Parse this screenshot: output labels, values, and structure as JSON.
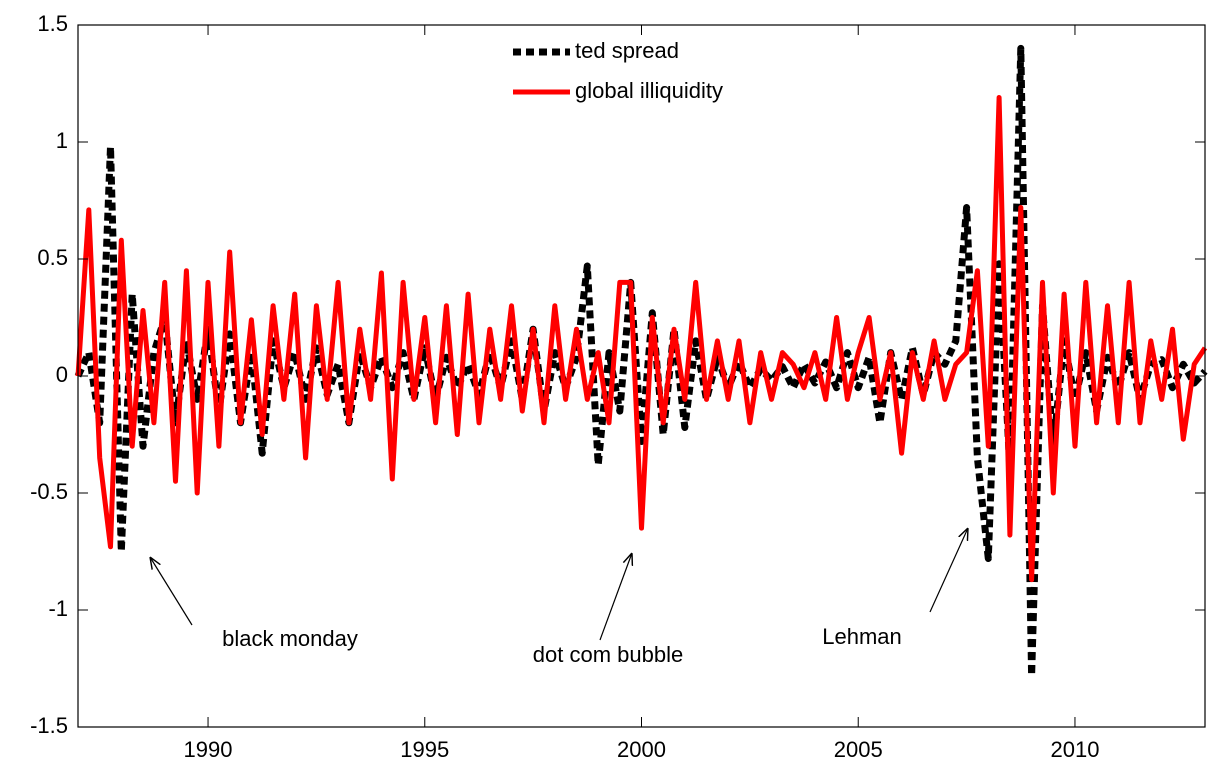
{
  "chart_data": {
    "type": "line",
    "x": [
      1987,
      1987.25,
      1987.5,
      1987.75,
      1988,
      1988.25,
      1988.5,
      1988.75,
      1989,
      1989.25,
      1989.5,
      1989.75,
      1990,
      1990.25,
      1990.5,
      1990.75,
      1991,
      1991.25,
      1991.5,
      1991.75,
      1992,
      1992.25,
      1992.5,
      1992.75,
      1993,
      1993.25,
      1993.5,
      1993.75,
      1994,
      1994.25,
      1994.5,
      1994.75,
      1995,
      1995.25,
      1995.5,
      1995.75,
      1996,
      1996.25,
      1996.5,
      1996.75,
      1997,
      1997.25,
      1997.5,
      1997.75,
      1998,
      1998.25,
      1998.5,
      1998.75,
      1999,
      1999.25,
      1999.5,
      1999.75,
      2000,
      2000.25,
      2000.5,
      2000.75,
      2001,
      2001.25,
      2001.5,
      2001.75,
      2002,
      2002.25,
      2002.5,
      2002.75,
      2003,
      2003.25,
      2003.5,
      2003.75,
      2004,
      2004.25,
      2004.5,
      2004.75,
      2005,
      2005.25,
      2005.5,
      2005.75,
      2006,
      2006.25,
      2006.5,
      2006.75,
      2007,
      2007.25,
      2007.5,
      2007.75,
      2008,
      2008.25,
      2008.5,
      2008.75,
      2009,
      2009.25,
      2009.5,
      2009.75,
      2010,
      2010.25,
      2010.5,
      2010.75,
      2011,
      2011.25,
      2011.5,
      2011.75,
      2012,
      2012.25,
      2012.5,
      2012.75,
      2013
    ],
    "series": [
      {
        "name": "ted spread",
        "color": "#000000",
        "dashed": true,
        "values": [
          0,
          0.1,
          -0.2,
          0.98,
          -0.75,
          0.35,
          -0.3,
          0.1,
          0.25,
          -0.2,
          0.15,
          -0.1,
          0.2,
          -0.15,
          0.18,
          -0.2,
          0.1,
          -0.33,
          0.15,
          -0.05,
          0.1,
          -0.1,
          0.12,
          -0.08,
          0.05,
          -0.2,
          0.1,
          -0.05,
          0.08,
          -0.05,
          0.1,
          -0.1,
          0.12,
          -0.1,
          0.08,
          -0.05,
          0.05,
          -0.08,
          0.1,
          -0.05,
          0.15,
          -0.1,
          0.2,
          -0.15,
          0.1,
          -0.05,
          0.08,
          0.47,
          -0.38,
          0.1,
          -0.15,
          0.4,
          -0.28,
          0.27,
          -0.25,
          0.2,
          -0.22,
          0.15,
          -0.1,
          0.08,
          -0.05,
          0.06,
          -0.05,
          0.03,
          -0.02,
          0.04,
          -0.05,
          0.05,
          -0.03,
          0.06,
          -0.05,
          0.1,
          -0.05,
          0.08,
          -0.2,
          0.1,
          -0.1,
          0.12,
          -0.08,
          0.1,
          0.05,
          0.15,
          0.72,
          -0.35,
          -0.78,
          0.48,
          -0.4,
          1.4,
          -1.28,
          0.3,
          -0.3,
          0.15,
          -0.1,
          0.1,
          -0.15,
          0.08,
          -0.05,
          0.1,
          -0.1,
          0.05,
          0.07,
          -0.05,
          0.05,
          -0.03,
          0.02
        ]
      },
      {
        "name": "global illiquidity",
        "color": "#ff0000",
        "dashed": false,
        "values": [
          0,
          0.71,
          -0.35,
          -0.73,
          0.58,
          -0.3,
          0.28,
          -0.2,
          0.4,
          -0.45,
          0.45,
          -0.5,
          0.4,
          -0.3,
          0.53,
          -0.2,
          0.24,
          -0.25,
          0.3,
          -0.1,
          0.35,
          -0.35,
          0.3,
          -0.1,
          0.4,
          -0.2,
          0.2,
          -0.1,
          0.44,
          -0.44,
          0.4,
          -0.1,
          0.25,
          -0.2,
          0.3,
          -0.25,
          0.35,
          -0.2,
          0.2,
          -0.1,
          0.3,
          -0.15,
          0.2,
          -0.2,
          0.3,
          -0.1,
          0.2,
          -0.1,
          0.1,
          -0.2,
          0.4,
          0.4,
          -0.65,
          0.25,
          -0.2,
          0.2,
          -0.1,
          0.4,
          -0.1,
          0.15,
          -0.1,
          0.15,
          -0.2,
          0.1,
          -0.1,
          0.1,
          0.05,
          -0.05,
          0.1,
          -0.1,
          0.25,
          -0.1,
          0.1,
          0.25,
          -0.1,
          0.1,
          -0.33,
          0.1,
          -0.1,
          0.15,
          -0.1,
          0.05,
          0.1,
          0.45,
          -0.3,
          1.19,
          -0.68,
          0.72,
          -0.87,
          0.4,
          -0.5,
          0.35,
          -0.3,
          0.4,
          -0.2,
          0.3,
          -0.2,
          0.4,
          -0.2,
          0.15,
          -0.1,
          0.2,
          -0.27,
          0.05,
          0.12
        ]
      }
    ],
    "xlim": [
      1987,
      2013
    ],
    "xticks": [
      1990,
      1995,
      2000,
      2005,
      2010
    ],
    "ylim": [
      -1.5,
      1.5
    ],
    "yticks": [
      -1.5,
      -1,
      -0.5,
      0,
      0.5,
      1,
      1.5
    ],
    "legend": "top",
    "annotations": [
      "black monday",
      "dot com bubble",
      "Lehman"
    ]
  }
}
